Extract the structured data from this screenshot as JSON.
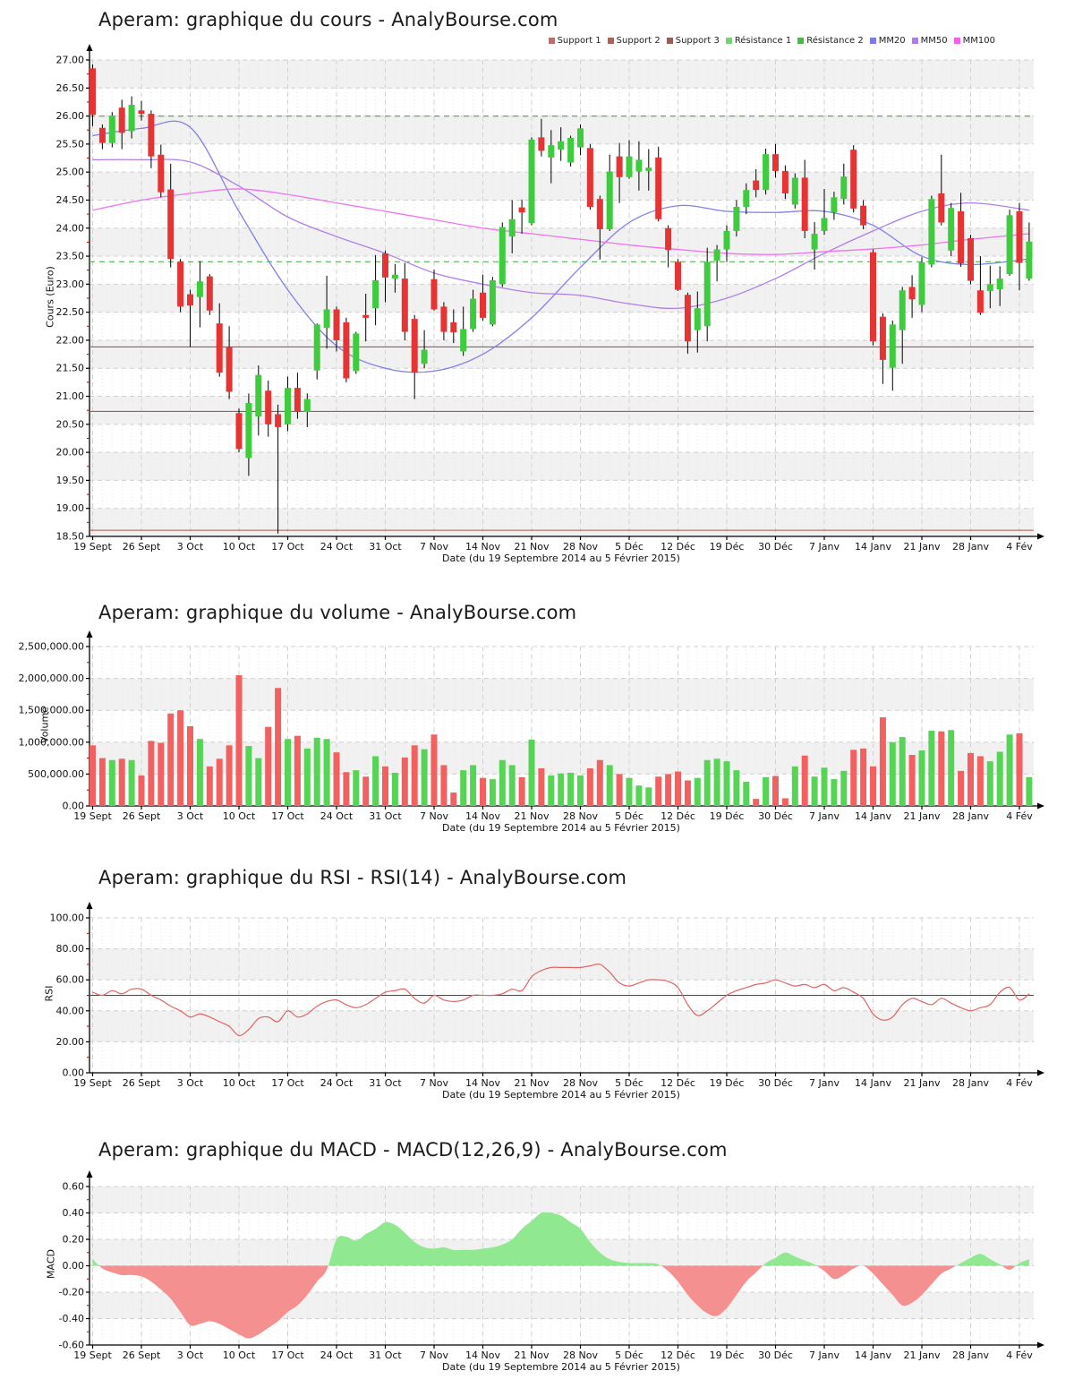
{
  "page": {
    "background": "#ffffff"
  },
  "charts": [
    {
      "title": "Aperam: graphique du cours - AnalyBourse.com",
      "ylabel": "Cours (Euro)",
      "xlabel": "Date (du 19 Septembre 2014 au 5 Février 2015)"
    },
    {
      "title": "Aperam: graphique du volume - AnalyBourse.com",
      "ylabel": "Volume",
      "xlabel": "Date (du 19 Septembre 2014 au 5 Février 2015)"
    },
    {
      "title": "Aperam: graphique du RSI - RSI(14) - AnalyBourse.com",
      "ylabel": "RSI",
      "xlabel": "Date (du 19 Septembre 2014 au 5 Février 2015)"
    },
    {
      "title": "Aperam: graphique du MACD - MACD(12,26,9) - AnalyBourse.com",
      "ylabel": "MACD",
      "xlabel": "Date (du 19 Septembre 2014 au 5 Février 2015)"
    }
  ],
  "legend": {
    "items": [
      {
        "label": "Support 1",
        "color": "#c66a66"
      },
      {
        "label": "Support 2",
        "color": "#b25f5b"
      },
      {
        "label": "Support 3",
        "color": "#9e5a54"
      },
      {
        "label": "Résistance 1",
        "color": "#74d474"
      },
      {
        "label": "Résistance 2",
        "color": "#44bb44"
      },
      {
        "label": "MM20",
        "color": "#7a7af0"
      },
      {
        "label": "MM50",
        "color": "#b478f0"
      },
      {
        "label": "MM100",
        "color": "#f05ff0"
      }
    ]
  },
  "chart_data": [
    {
      "type": "candlestick",
      "title": "Aperam: graphique du cours - AnalyBourse.com",
      "xlabel": "Date (du 19 Septembre 2014 au 5 Février 2015)",
      "ylabel": "Cours (Euro)",
      "ylim": [
        18.5,
        27.0
      ],
      "y_ticklabels": [
        "27.00",
        "26.50",
        "26.00",
        "25.50",
        "25.00",
        "24.50",
        "24.00",
        "23.50",
        "23.00",
        "22.50",
        "22.00",
        "21.50",
        "21.00",
        "20.50",
        "20.00",
        "19.50",
        "19.00",
        "18.50"
      ],
      "x_ticklabels": [
        "19 Sept",
        "26 Sept",
        "3 Oct",
        "10 Oct",
        "17 Oct",
        "24 Oct",
        "31 Oct",
        "7 Nov",
        "14 Nov",
        "21 Nov",
        "28 Nov",
        "5 Déc",
        "12 Déc",
        "19 Déc",
        "30 Déc",
        "7 Janv",
        "14 Janv",
        "21 Janv",
        "28 Janv",
        "4 Fév"
      ],
      "colors": {
        "up": "#3ecb3e",
        "down": "#e63333",
        "wick": "#000000"
      },
      "supports": [
        {
          "label": "Support 1",
          "value": 21.88,
          "color": "#a8574e"
        },
        {
          "label": "Support 2",
          "value": 20.73,
          "color": "#a8574e"
        },
        {
          "label": "Support 3",
          "value": 18.61,
          "color": "#a8574e"
        }
      ],
      "resistances": [
        {
          "label": "Résistance 1",
          "value": 26.0,
          "color": "#55b355"
        },
        {
          "label": "Résistance 2",
          "value": 23.4,
          "color": "#55b355"
        }
      ],
      "moving_averages": [
        {
          "name": "MM20",
          "color": "#8080e8",
          "x": [
            0,
            5,
            10,
            15,
            20,
            25,
            30,
            35,
            40,
            45,
            50,
            55,
            60,
            65,
            70,
            75,
            80,
            85,
            90,
            96
          ],
          "values": [
            25.65,
            25.78,
            25.8,
            24.3,
            22.9,
            21.9,
            21.5,
            21.45,
            21.75,
            22.4,
            23.3,
            24.1,
            24.4,
            24.3,
            24.28,
            24.3,
            24.05,
            23.5,
            23.35,
            23.45
          ]
        },
        {
          "name": "MM50",
          "color": "#b07fe8",
          "x": [
            0,
            5,
            10,
            15,
            20,
            25,
            30,
            35,
            40,
            45,
            50,
            55,
            60,
            65,
            70,
            75,
            80,
            85,
            90,
            96
          ],
          "values": [
            25.22,
            25.22,
            25.18,
            24.75,
            24.2,
            23.85,
            23.55,
            23.2,
            23.0,
            22.85,
            22.8,
            22.65,
            22.57,
            22.75,
            23.1,
            23.55,
            23.95,
            24.3,
            24.45,
            24.32
          ]
        },
        {
          "name": "MM100",
          "color": "#ee74ee",
          "x": [
            0,
            5,
            10,
            15,
            20,
            25,
            30,
            35,
            40,
            45,
            50,
            55,
            60,
            65,
            70,
            75,
            80,
            85,
            90,
            96
          ],
          "values": [
            24.32,
            24.5,
            24.62,
            24.7,
            24.6,
            24.45,
            24.3,
            24.15,
            24.0,
            23.9,
            23.8,
            23.7,
            23.62,
            23.55,
            23.53,
            23.58,
            23.63,
            23.7,
            23.8,
            23.9
          ]
        }
      ],
      "candles": [
        [
          26.85,
          26.92,
          25.82,
          26.02
        ],
        [
          25.79,
          25.85,
          25.41,
          25.52
        ],
        [
          25.52,
          26.07,
          25.44,
          26.01
        ],
        [
          26.15,
          26.29,
          25.41,
          25.7
        ],
        [
          25.73,
          26.35,
          25.6,
          26.2
        ],
        [
          26.1,
          26.27,
          25.92,
          26.04
        ],
        [
          26.04,
          26.1,
          25.07,
          25.28
        ],
        [
          25.31,
          25.49,
          24.55,
          24.64
        ],
        [
          24.69,
          25.15,
          23.3,
          23.45
        ],
        [
          23.4,
          23.45,
          22.5,
          22.6
        ],
        [
          22.82,
          22.9,
          21.88,
          22.62
        ],
        [
          22.77,
          23.41,
          22.23,
          23.05
        ],
        [
          23.14,
          23.18,
          22.45,
          22.53
        ],
        [
          22.3,
          22.66,
          21.35,
          21.42
        ],
        [
          21.88,
          22.25,
          20.95,
          21.08
        ],
        [
          20.7,
          20.78,
          20.0,
          20.06
        ],
        [
          19.9,
          21.05,
          19.58,
          20.88
        ],
        [
          20.64,
          21.55,
          20.3,
          21.38
        ],
        [
          21.1,
          21.28,
          20.28,
          20.5
        ],
        [
          20.68,
          20.85,
          18.55,
          20.45
        ],
        [
          20.5,
          21.35,
          20.38,
          21.15
        ],
        [
          21.15,
          21.42,
          20.6,
          20.72
        ],
        [
          20.72,
          21.05,
          20.45,
          20.95
        ],
        [
          21.46,
          22.3,
          21.3,
          22.28
        ],
        [
          22.22,
          23.15,
          21.85,
          22.55
        ],
        [
          22.55,
          22.6,
          21.8,
          22.0
        ],
        [
          22.32,
          22.4,
          21.25,
          21.32
        ],
        [
          21.45,
          22.15,
          21.4,
          22.12
        ],
        [
          22.45,
          22.83,
          21.98,
          22.4
        ],
        [
          22.57,
          23.52,
          22.27,
          23.07
        ],
        [
          23.55,
          23.6,
          22.68,
          23.12
        ],
        [
          23.1,
          23.36,
          22.85,
          23.17
        ],
        [
          23.1,
          23.38,
          22.0,
          22.15
        ],
        [
          22.38,
          22.45,
          20.95,
          21.42
        ],
        [
          21.58,
          22.18,
          21.5,
          21.83
        ],
        [
          23.09,
          23.26,
          22.53,
          22.55
        ],
        [
          22.6,
          22.68,
          22.0,
          22.15
        ],
        [
          22.32,
          22.55,
          21.95,
          22.14
        ],
        [
          21.8,
          22.6,
          21.72,
          22.2
        ],
        [
          22.2,
          22.9,
          22.15,
          22.74
        ],
        [
          22.85,
          23.17,
          22.35,
          22.4
        ],
        [
          22.28,
          23.13,
          22.25,
          23.07
        ],
        [
          23.0,
          24.1,
          22.95,
          24.02
        ],
        [
          23.85,
          24.5,
          23.55,
          24.16
        ],
        [
          24.37,
          24.51,
          23.9,
          24.28
        ],
        [
          24.09,
          25.62,
          24.05,
          25.58
        ],
        [
          25.62,
          25.95,
          25.28,
          25.38
        ],
        [
          25.26,
          25.75,
          24.8,
          25.48
        ],
        [
          25.4,
          25.8,
          25.2,
          25.55
        ],
        [
          25.17,
          25.65,
          25.1,
          25.61
        ],
        [
          25.44,
          25.85,
          25.3,
          25.78
        ],
        [
          25.43,
          25.5,
          24.33,
          24.38
        ],
        [
          24.52,
          24.58,
          23.44,
          23.98
        ],
        [
          23.98,
          25.31,
          23.95,
          25.01
        ],
        [
          25.28,
          25.52,
          24.45,
          24.91
        ],
        [
          24.91,
          25.57,
          24.88,
          25.28
        ],
        [
          25.01,
          25.55,
          24.67,
          25.22
        ],
        [
          25.02,
          25.41,
          24.67,
          25.08
        ],
        [
          25.26,
          25.45,
          24.12,
          24.16
        ],
        [
          24.0,
          24.05,
          23.3,
          23.61
        ],
        [
          23.4,
          23.45,
          22.88,
          22.9
        ],
        [
          22.81,
          22.85,
          21.76,
          21.98
        ],
        [
          22.18,
          22.87,
          21.78,
          22.57
        ],
        [
          22.25,
          23.65,
          21.98,
          23.4
        ],
        [
          23.42,
          23.7,
          23.05,
          23.62
        ],
        [
          23.62,
          24.05,
          23.4,
          23.95
        ],
        [
          23.95,
          24.5,
          23.85,
          24.38
        ],
        [
          24.38,
          24.8,
          24.25,
          24.68
        ],
        [
          24.85,
          25.05,
          24.55,
          24.68
        ],
        [
          24.68,
          25.42,
          24.6,
          25.32
        ],
        [
          25.32,
          25.5,
          24.9,
          25.02
        ],
        [
          25.02,
          25.12,
          24.52,
          24.62
        ],
        [
          24.42,
          24.98,
          24.35,
          24.9
        ],
        [
          24.9,
          25.22,
          23.82,
          23.95
        ],
        [
          23.62,
          24.11,
          23.26,
          23.9
        ],
        [
          23.95,
          24.7,
          23.88,
          24.18
        ],
        [
          24.28,
          24.65,
          24.15,
          24.55
        ],
        [
          24.52,
          25.15,
          24.42,
          24.92
        ],
        [
          25.4,
          25.48,
          24.28,
          24.35
        ],
        [
          24.4,
          24.5,
          23.98,
          24.05
        ],
        [
          23.57,
          23.62,
          21.91,
          21.98
        ],
        [
          22.42,
          22.48,
          21.22,
          21.65
        ],
        [
          21.51,
          22.35,
          21.1,
          22.28
        ],
        [
          22.18,
          22.95,
          21.58,
          22.89
        ],
        [
          22.95,
          23.16,
          22.4,
          22.73
        ],
        [
          22.63,
          23.48,
          22.5,
          23.39
        ],
        [
          23.35,
          24.58,
          23.3,
          24.52
        ],
        [
          24.62,
          25.31,
          24.05,
          24.1
        ],
        [
          23.6,
          24.45,
          23.5,
          24.36
        ],
        [
          24.3,
          24.63,
          23.31,
          23.37
        ],
        [
          23.82,
          23.88,
          23.0,
          23.06
        ],
        [
          22.89,
          23.5,
          22.45,
          22.49
        ],
        [
          22.88,
          23.33,
          22.57,
          23.0
        ],
        [
          22.91,
          23.32,
          22.61,
          23.1
        ],
        [
          23.18,
          24.33,
          23.15,
          24.23
        ],
        [
          24.3,
          24.45,
          22.89,
          23.38
        ],
        [
          23.1,
          24.1,
          23.06,
          23.76
        ]
      ]
    },
    {
      "type": "bar",
      "title": "Aperam: graphique du volume - AnalyBourse.com",
      "xlabel": "Date (du 19 Septembre 2014 au 5 Février 2015)",
      "ylabel": "Volume",
      "ylim": [
        0,
        2500000
      ],
      "y_ticklabels": [
        "2,500,000.00",
        "2,000,000.00",
        "1,500,000.00",
        "1,000,000.00",
        "500,000.00",
        "0.00"
      ],
      "colors": {
        "up": "#55d455",
        "down": "#f26060"
      },
      "values": [
        950000,
        750000,
        720000,
        740000,
        720000,
        480000,
        1020000,
        990000,
        1450000,
        1500000,
        1250000,
        1050000,
        620000,
        740000,
        950000,
        2050000,
        940000,
        750000,
        1240000,
        1850000,
        1050000,
        1100000,
        900000,
        1070000,
        1050000,
        840000,
        530000,
        560000,
        460000,
        780000,
        620000,
        520000,
        760000,
        950000,
        890000,
        1120000,
        640000,
        210000,
        560000,
        640000,
        440000,
        420000,
        720000,
        640000,
        450000,
        1040000,
        590000,
        480000,
        510000,
        520000,
        480000,
        590000,
        720000,
        640000,
        500000,
        440000,
        320000,
        290000,
        460000,
        500000,
        540000,
        400000,
        440000,
        720000,
        740000,
        700000,
        560000,
        380000,
        110000,
        450000,
        470000,
        120000,
        620000,
        790000,
        460000,
        600000,
        420000,
        550000,
        880000,
        900000,
        620000,
        1390000,
        1000000,
        1080000,
        800000,
        870000,
        1180000,
        1170000,
        1190000,
        550000,
        830000,
        780000,
        700000,
        850000,
        1120000,
        1140000,
        450000
      ]
    },
    {
      "type": "line",
      "title": "Aperam: graphique du RSI - RSI(14) - AnalyBourse.com",
      "xlabel": "Date (du 19 Septembre 2014 au 5 Février 2015)",
      "ylabel": "RSI",
      "ylim": [
        0,
        100
      ],
      "y_ticklabels": [
        "100.00",
        "80.00",
        "60.00",
        "40.00",
        "20.00",
        "0.00"
      ],
      "midline": 50,
      "color": "#e06464",
      "values": [
        52,
        50,
        53,
        51,
        54,
        54,
        50,
        47,
        43,
        40,
        36,
        38,
        36,
        33,
        30,
        24,
        28,
        35,
        36,
        33,
        40,
        36,
        38,
        43,
        46,
        47,
        44,
        42,
        44,
        48,
        52,
        53,
        54,
        48,
        45,
        50,
        47,
        46,
        47,
        50,
        50,
        50,
        51,
        54,
        53,
        62,
        66,
        68,
        68,
        68,
        68,
        69,
        70,
        65,
        58,
        56,
        58,
        60,
        60,
        59,
        55,
        44,
        37,
        40,
        45,
        50,
        53,
        55,
        57,
        58,
        60,
        58,
        56,
        57,
        55,
        57,
        53,
        55,
        52,
        48,
        38,
        34,
        36,
        44,
        48,
        46,
        44,
        48,
        45,
        42,
        40,
        42,
        44,
        52,
        55,
        47,
        51
      ]
    },
    {
      "type": "area",
      "title": "Aperam: graphique du MACD - MACD(12,26,9) - AnalyBourse.com",
      "xlabel": "Date (du 19 Septembre 2014 au 5 Février 2015)",
      "ylabel": "MACD",
      "ylim": [
        -0.6,
        0.6
      ],
      "y_ticklabels": [
        "0.60",
        "0.40",
        "0.20",
        "0.00",
        "-0.20",
        "-0.40",
        "-0.60"
      ],
      "colors": {
        "pos": "#90e890",
        "neg": "#f59090"
      },
      "values": [
        0.05,
        -0.02,
        -0.05,
        -0.07,
        -0.07,
        -0.08,
        -0.12,
        -0.18,
        -0.25,
        -0.35,
        -0.45,
        -0.44,
        -0.42,
        -0.44,
        -0.48,
        -0.52,
        -0.55,
        -0.52,
        -0.47,
        -0.42,
        -0.35,
        -0.3,
        -0.22,
        -0.12,
        -0.03,
        0.2,
        0.22,
        0.19,
        0.24,
        0.28,
        0.33,
        0.31,
        0.25,
        0.18,
        0.14,
        0.13,
        0.14,
        0.12,
        0.12,
        0.12,
        0.13,
        0.14,
        0.16,
        0.2,
        0.28,
        0.34,
        0.4,
        0.4,
        0.38,
        0.33,
        0.28,
        0.18,
        0.1,
        0.05,
        0.03,
        0.02,
        0.02,
        0.02,
        0.01,
        -0.04,
        -0.12,
        -0.22,
        -0.3,
        -0.36,
        -0.38,
        -0.32,
        -0.22,
        -0.12,
        -0.05,
        0.02,
        0.06,
        0.1,
        0.07,
        0.04,
        0.01,
        -0.04,
        -0.1,
        -0.07,
        -0.02,
        0.0,
        -0.06,
        -0.14,
        -0.22,
        -0.3,
        -0.28,
        -0.22,
        -0.14,
        -0.06,
        -0.02,
        0.02,
        0.06,
        0.09,
        0.05,
        0.01,
        -0.03,
        0.02,
        0.05
      ]
    }
  ]
}
